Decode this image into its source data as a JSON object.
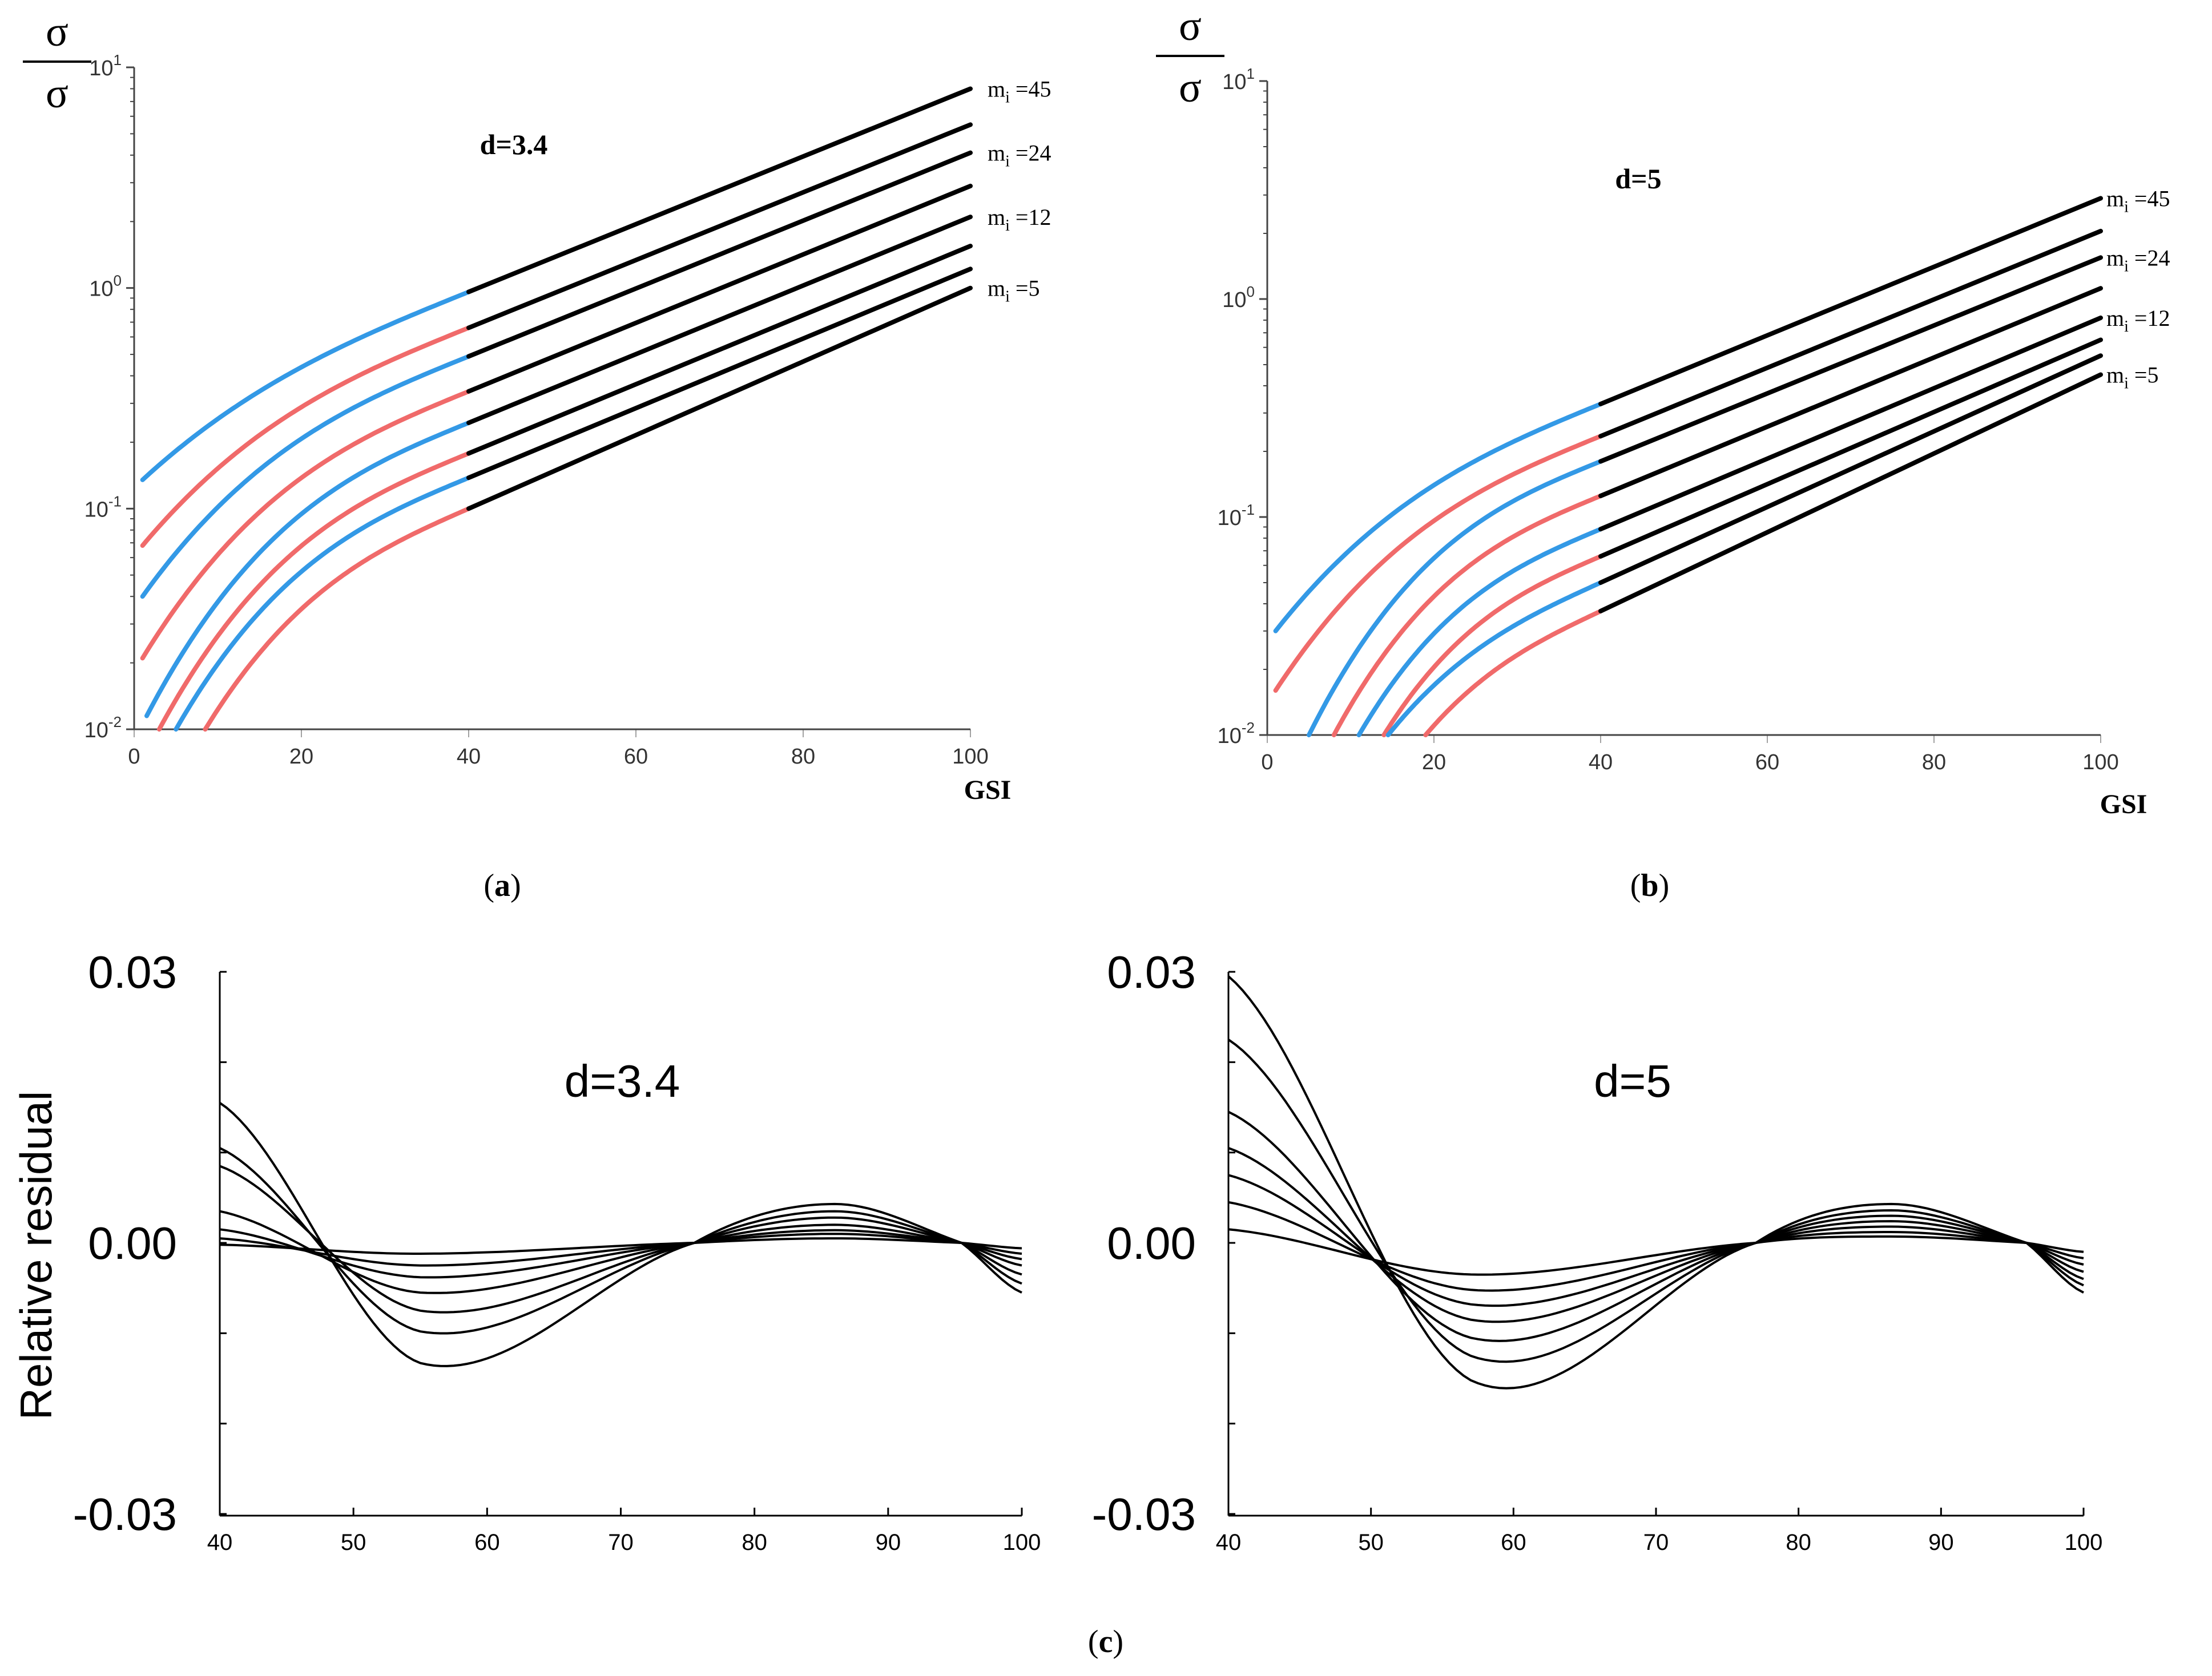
{
  "chart_data": [
    {
      "id": "a",
      "type": "line",
      "panel_label": "a",
      "annotation": "d=3.4",
      "ylabel_num": "σ3",
      "ylabel_den": "σc",
      "xlabel": "GSI",
      "x_ticks": [
        "0",
        "20",
        "40",
        "60",
        "80",
        "100"
      ],
      "y_scale": "log",
      "y_ticks": [
        {
          "base": "10",
          "exp": "-2"
        },
        {
          "base": "10",
          "exp": "-1"
        },
        {
          "base": "10",
          "exp": "0"
        },
        {
          "base": "10",
          "exp": "1"
        }
      ],
      "xlim": [
        0,
        100
      ],
      "ylim": [
        0.01,
        10
      ],
      "d": 3.4,
      "transition_gsi": 40,
      "series_labels": [
        {
          "mi": "45",
          "series_index": 0
        },
        {
          "mi": "24",
          "series_index": 2
        },
        {
          "mi": "12",
          "series_index": 4
        },
        {
          "mi": "5",
          "series_index": 7
        }
      ],
      "series": [
        {
          "color": "#3399e6",
          "start": [
            1,
            0.135
          ],
          "mid": [
            40,
            0.96
          ],
          "end": [
            100,
            8.0
          ]
        },
        {
          "color": "#f06a6a",
          "start": [
            1,
            0.068
          ],
          "mid": [
            40,
            0.66
          ],
          "end": [
            100,
            5.5
          ]
        },
        {
          "color": "#3399e6",
          "start": [
            1,
            0.04
          ],
          "mid": [
            40,
            0.49
          ],
          "end": [
            100,
            4.1
          ]
        },
        {
          "color": "#f06a6a",
          "start": [
            1,
            0.021
          ],
          "mid": [
            40,
            0.34
          ],
          "end": [
            100,
            2.9
          ]
        },
        {
          "color": "#3399e6",
          "start": [
            1.5,
            0.0115
          ],
          "mid": [
            40,
            0.245
          ],
          "end": [
            100,
            2.1
          ]
        },
        {
          "color": "#f06a6a",
          "start": [
            3,
            0.01
          ],
          "mid": [
            40,
            0.178
          ],
          "end": [
            100,
            1.55
          ]
        },
        {
          "color": "#3399e6",
          "start": [
            5,
            0.01
          ],
          "mid": [
            40,
            0.138
          ],
          "end": [
            100,
            1.22
          ]
        },
        {
          "color": "#f06a6a",
          "start": [
            8.5,
            0.01
          ],
          "mid": [
            40,
            0.1
          ],
          "end": [
            100,
            1.0
          ]
        }
      ]
    },
    {
      "id": "b",
      "type": "line",
      "panel_label": "b",
      "annotation": "d=5",
      "ylabel_num": "σ3",
      "ylabel_den": "σc",
      "xlabel": "GSI",
      "x_ticks": [
        "0",
        "20",
        "40",
        "60",
        "80",
        "100"
      ],
      "y_scale": "log",
      "y_ticks": [
        {
          "base": "10",
          "exp": "-2"
        },
        {
          "base": "10",
          "exp": "-1"
        },
        {
          "base": "10",
          "exp": "0"
        },
        {
          "base": "10",
          "exp": "1"
        }
      ],
      "xlim": [
        0,
        100
      ],
      "ylim": [
        0.01,
        10
      ],
      "d": 5,
      "transition_gsi": 40,
      "series_labels": [
        {
          "mi": "45",
          "series_index": 0
        },
        {
          "mi": "24",
          "series_index": 2
        },
        {
          "mi": "12",
          "series_index": 4
        },
        {
          "mi": "5",
          "series_index": 7
        }
      ],
      "series": [
        {
          "color": "#3399e6",
          "start": [
            1,
            0.03
          ],
          "mid": [
            40,
            0.33
          ],
          "end": [
            100,
            2.9
          ]
        },
        {
          "color": "#f06a6a",
          "start": [
            1,
            0.016
          ],
          "mid": [
            40,
            0.235
          ],
          "end": [
            100,
            2.05
          ]
        },
        {
          "color": "#3399e6",
          "start": [
            5,
            0.01
          ],
          "mid": [
            40,
            0.18
          ],
          "end": [
            100,
            1.55
          ]
        },
        {
          "color": "#f06a6a",
          "start": [
            8,
            0.01
          ],
          "mid": [
            40,
            0.125
          ],
          "end": [
            100,
            1.12
          ]
        },
        {
          "color": "#3399e6",
          "start": [
            11,
            0.01
          ],
          "mid": [
            40,
            0.088
          ],
          "end": [
            100,
            0.82
          ]
        },
        {
          "color": "#f06a6a",
          "start": [
            14,
            0.01
          ],
          "mid": [
            40,
            0.066
          ],
          "end": [
            100,
            0.65
          ]
        },
        {
          "color": "#3399e6",
          "start": [
            14.5,
            0.01
          ],
          "mid": [
            40,
            0.05
          ],
          "end": [
            100,
            0.55
          ]
        },
        {
          "color": "#f06a6a",
          "start": [
            19,
            0.01
          ],
          "mid": [
            40,
            0.037
          ],
          "end": [
            100,
            0.45
          ]
        }
      ]
    },
    {
      "id": "c-left",
      "type": "line",
      "panel_label": "c",
      "annotation": "d=3.4",
      "ylabel": "Relative residual",
      "xlabel": "",
      "x_ticks": [
        "40",
        "50",
        "60",
        "70",
        "80",
        "90",
        "100"
      ],
      "y_ticks": [
        "-0.03",
        "0.00",
        "0.03"
      ],
      "xlim": [
        40,
        100
      ],
      "ylim": [
        -0.03,
        0.03
      ],
      "series": [
        {
          "pts": [
            [
              40,
              0.0155
            ],
            [
              55,
              -0.0133
            ],
            [
              75.5,
              0
            ],
            [
              86,
              0.0043
            ],
            [
              95.5,
              0
            ],
            [
              100,
              -0.0055
            ]
          ]
        },
        {
          "pts": [
            [
              40,
              0.0105
            ],
            [
              55,
              -0.0098
            ],
            [
              75.5,
              0
            ],
            [
              86,
              0.0035
            ],
            [
              95.5,
              0
            ],
            [
              100,
              -0.0045
            ]
          ]
        },
        {
          "pts": [
            [
              40,
              0.0085
            ],
            [
              55,
              -0.0075
            ],
            [
              75.5,
              0
            ],
            [
              86,
              0.0028
            ],
            [
              95.5,
              0
            ],
            [
              100,
              -0.0035
            ]
          ]
        },
        {
          "pts": [
            [
              40,
              0.0035
            ],
            [
              55,
              -0.0055
            ],
            [
              75.5,
              0
            ],
            [
              86,
              0.002
            ],
            [
              95.5,
              0
            ],
            [
              100,
              -0.0025
            ]
          ]
        },
        {
          "pts": [
            [
              40,
              0.0015
            ],
            [
              55,
              -0.0038
            ],
            [
              75.5,
              0
            ],
            [
              86,
              0.0014
            ],
            [
              95.5,
              0
            ],
            [
              100,
              -0.0018
            ]
          ]
        },
        {
          "pts": [
            [
              40,
              0.0005
            ],
            [
              55,
              -0.0025
            ],
            [
              75.5,
              0
            ],
            [
              86,
              0.001
            ],
            [
              95.5,
              0
            ],
            [
              100,
              -0.0012
            ]
          ]
        },
        {
          "pts": [
            [
              40,
              -0.0002
            ],
            [
              55,
              -0.0012
            ],
            [
              75.5,
              0
            ],
            [
              86,
              0.0005
            ],
            [
              95.5,
              0
            ],
            [
              100,
              -0.0006
            ]
          ]
        }
      ]
    },
    {
      "id": "c-right",
      "type": "line",
      "panel_label": "c",
      "annotation": "d=5",
      "ylabel": "",
      "xlabel": "",
      "x_ticks": [
        "40",
        "50",
        "60",
        "70",
        "80",
        "90",
        "100"
      ],
      "y_ticks": [
        "-0.03",
        "0.00",
        "0.03"
      ],
      "xlim": [
        40,
        100
      ],
      "ylim": [
        -0.03,
        0.03
      ],
      "series": [
        {
          "pts": [
            [
              40,
              0.0295
            ],
            [
              57,
              -0.0152
            ],
            [
              77,
              0
            ],
            [
              86.5,
              0.0043
            ],
            [
              96,
              0
            ],
            [
              100,
              -0.0055
            ]
          ]
        },
        {
          "pts": [
            [
              40,
              0.0225
            ],
            [
              57,
              -0.0125
            ],
            [
              77,
              0
            ],
            [
              86.5,
              0.0036
            ],
            [
              96,
              0
            ],
            [
              100,
              -0.0047
            ]
          ]
        },
        {
          "pts": [
            [
              40,
              0.0145
            ],
            [
              57,
              -0.0105
            ],
            [
              77,
              0
            ],
            [
              86.5,
              0.003
            ],
            [
              96,
              0
            ],
            [
              100,
              -0.004
            ]
          ]
        },
        {
          "pts": [
            [
              40,
              0.0105
            ],
            [
              57,
              -0.0085
            ],
            [
              77,
              0
            ],
            [
              86.5,
              0.0024
            ],
            [
              96,
              0
            ],
            [
              100,
              -0.0032
            ]
          ]
        },
        {
          "pts": [
            [
              40,
              0.0075
            ],
            [
              57,
              -0.0068
            ],
            [
              77,
              0
            ],
            [
              86.5,
              0.0018
            ],
            [
              96,
              0
            ],
            [
              100,
              -0.0024
            ]
          ]
        },
        {
          "pts": [
            [
              40,
              0.0045
            ],
            [
              57,
              -0.0052
            ],
            [
              77,
              0
            ],
            [
              86.5,
              0.0012
            ],
            [
              96,
              0
            ],
            [
              100,
              -0.0017
            ]
          ]
        },
        {
          "pts": [
            [
              40,
              0.0015
            ],
            [
              57,
              -0.0035
            ],
            [
              77,
              0
            ],
            [
              86.5,
              0.0007
            ],
            [
              96,
              0
            ],
            [
              100,
              -0.001
            ]
          ]
        }
      ]
    }
  ]
}
